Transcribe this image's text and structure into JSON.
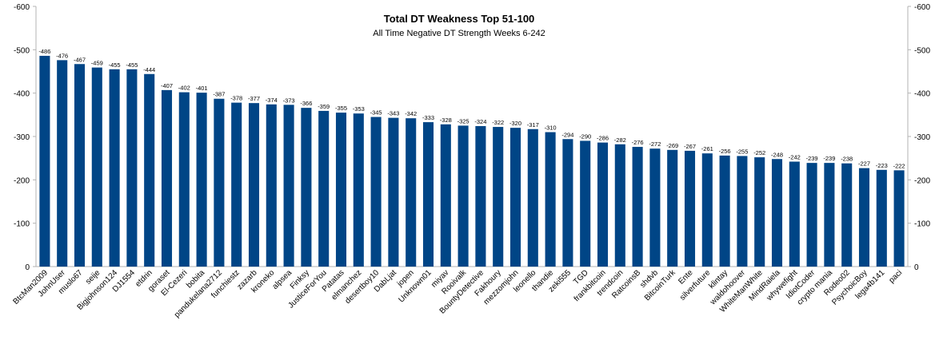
{
  "chart_data": {
    "type": "bar",
    "title": "Total DT Weakness Top 51-100",
    "subtitle": "All Time Negative DT Strength Weeks 6-242",
    "xlabel": "",
    "ylabel": "",
    "ylim": [
      0,
      -600
    ],
    "y_ticks": [
      0,
      -100,
      -200,
      -300,
      -400,
      -500,
      -600
    ],
    "y_tick_labels": [
      "0",
      "-100",
      "-200",
      "-300",
      "-400",
      "-500",
      "-600"
    ],
    "axes": "left-and-right",
    "grid": false,
    "legend": "none",
    "bar_color": "#004586",
    "categories": [
      "BtcMan2009",
      "JohnUser",
      "muslo67",
      "seije",
      "Bigjohnson124",
      "DJ1554",
      "etdrin",
      "goraset",
      "El-Cezeri",
      "bobita",
      "pandukelana2712",
      "funchiestz",
      "zazarb",
      "kroneko",
      "alpsea",
      "Finksy",
      "JusticeForYou",
      "Patatas",
      "elmanchez",
      "desertboy10",
      "DabLjat",
      "jopen",
      "Unknown01",
      "miyav",
      "Rooivalk",
      "BountyDetective",
      "Fakhoury",
      "mezzomjohn",
      "leonello",
      "thandie",
      "zeki555",
      "TGD",
      "frankbitcoin",
      "trendcoin",
      "RatcoinsB",
      "shdvb",
      "BitcoinTurk",
      "Ente",
      "silverfuture",
      "klintay",
      "waldohoover",
      "WhiteManWhite",
      "MindRaiela",
      "whywefight",
      "IdiotCoder",
      "crypto mania",
      "Rodeo02",
      "PsychoicBoy",
      "lega4b141",
      "paci"
    ],
    "values": [
      -486,
      -476,
      -467,
      -459,
      -455,
      -455,
      -444,
      -407,
      -402,
      -401,
      -387,
      -378,
      -377,
      -374,
      -373,
      -366,
      -359,
      -355,
      -353,
      -345,
      -343,
      -342,
      -333,
      -328,
      -325,
      -324,
      -322,
      -320,
      -317,
      -310,
      -294,
      -290,
      -286,
      -282,
      -276,
      -272,
      -269,
      -267,
      -261,
      -256,
      -255,
      -252,
      -248,
      -242,
      -239,
      -239,
      -238,
      -227,
      -223,
      -222
    ]
  }
}
